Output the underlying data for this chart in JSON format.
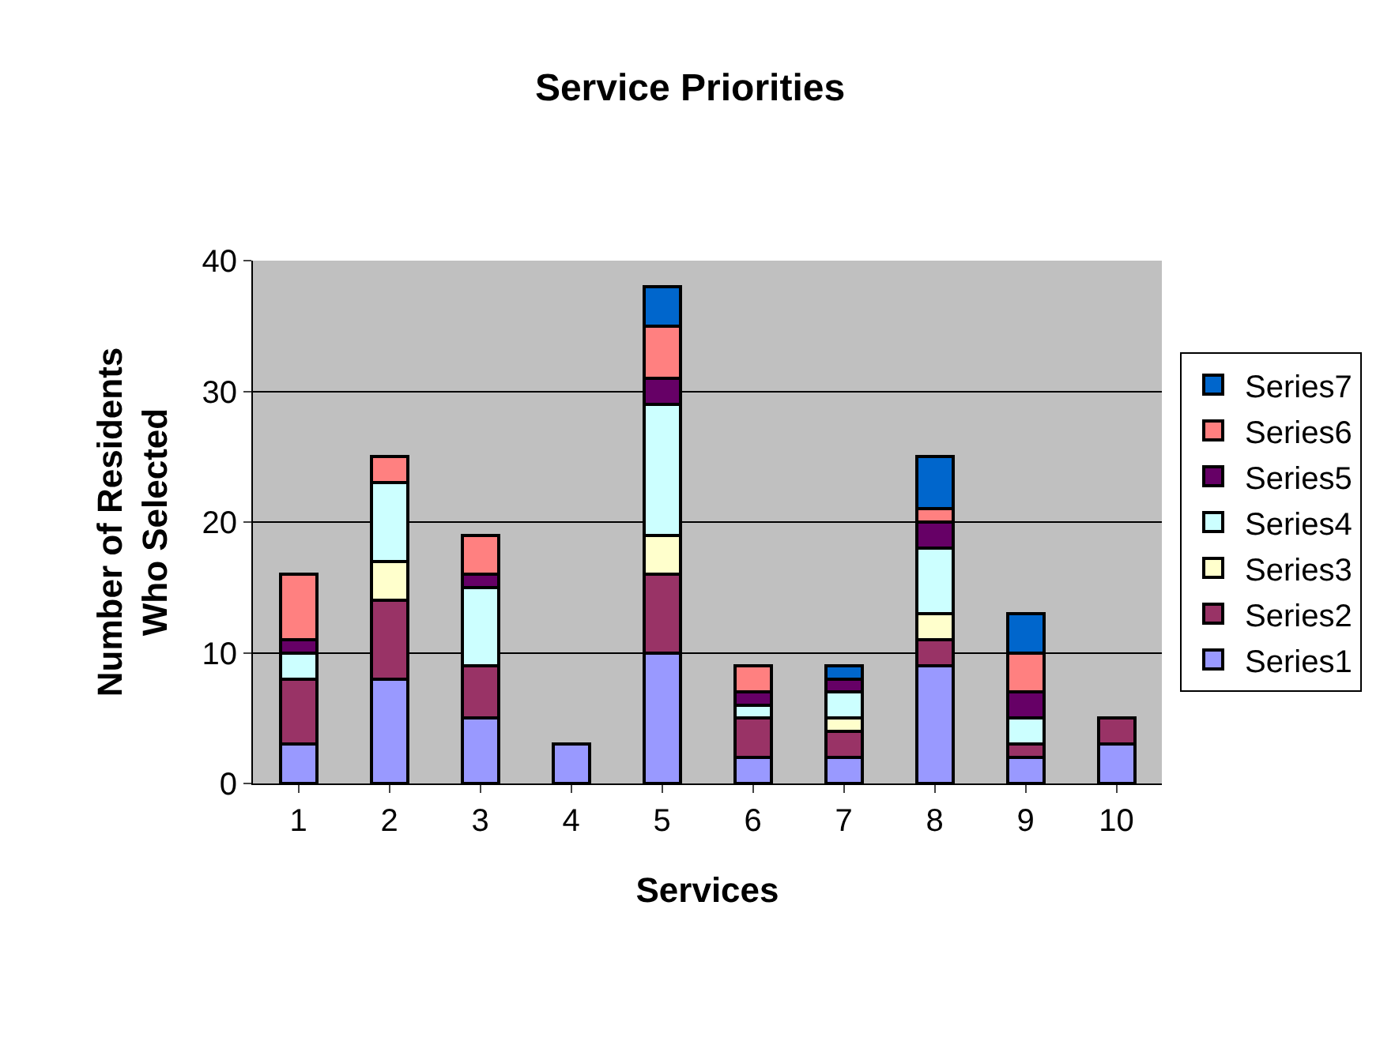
{
  "chart_data": {
    "type": "bar",
    "stacked": true,
    "title": "Service Priorities",
    "xlabel": "Services",
    "ylabel": "Number of Residents Who Selected",
    "categories": [
      "1",
      "2",
      "3",
      "4",
      "5",
      "6",
      "7",
      "8",
      "9",
      "10"
    ],
    "series": [
      {
        "name": "Series1",
        "color": "#9999ff",
        "values": [
          3,
          8,
          5,
          3,
          10,
          2,
          2,
          9,
          2,
          3
        ]
      },
      {
        "name": "Series2",
        "color": "#993366",
        "values": [
          5,
          6,
          4,
          null,
          6,
          3,
          2,
          2,
          1,
          2
        ]
      },
      {
        "name": "Series3",
        "color": "#ffffcc",
        "values": [
          null,
          3,
          null,
          null,
          3,
          null,
          1,
          2,
          null,
          null
        ]
      },
      {
        "name": "Series4",
        "color": "#ccffff",
        "values": [
          2,
          6,
          6,
          null,
          10,
          1,
          2,
          5,
          2,
          null
        ]
      },
      {
        "name": "Series5",
        "color": "#660066",
        "values": [
          1,
          null,
          1,
          null,
          2,
          1,
          1,
          2,
          2,
          null
        ]
      },
      {
        "name": "Series6",
        "color": "#ff8080",
        "values": [
          5,
          2,
          3,
          null,
          4,
          2,
          null,
          1,
          3,
          null
        ]
      },
      {
        "name": "Series7",
        "color": "#0066cc",
        "values": [
          null,
          null,
          null,
          null,
          3,
          null,
          1,
          4,
          3,
          null
        ]
      }
    ],
    "ylim": [
      0,
      40
    ],
    "yticks": [
      0,
      10,
      20,
      30,
      40
    ],
    "grid": "y",
    "legend": "right"
  }
}
